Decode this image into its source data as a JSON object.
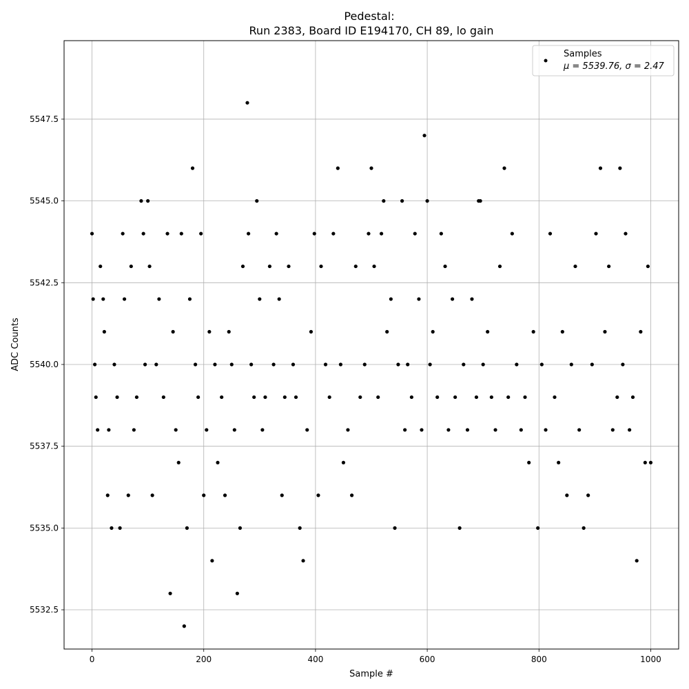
{
  "chart_data": {
    "type": "scatter",
    "title": "Pedestal:",
    "subtitle": "Run 2383, Board ID E194170, CH 89, lo gain",
    "xlabel": "Sample #",
    "ylabel": "ADC Counts",
    "xlim": [
      -50,
      1050
    ],
    "ylim": [
      5531.3,
      5549.9
    ],
    "xticks": [
      0,
      200,
      400,
      600,
      800,
      1000
    ],
    "yticks": [
      5532.5,
      5535.0,
      5537.5,
      5540.0,
      5542.5,
      5545.0,
      5547.5
    ],
    "xtick_labels": [
      "0",
      "200",
      "400",
      "600",
      "800",
      "1000"
    ],
    "ytick_labels": [
      "5532.5",
      "5535.0",
      "5537.5",
      "5540.0",
      "5542.5",
      "5545.0",
      "5547.5"
    ],
    "grid": true,
    "legend_position": "top-right",
    "legend": {
      "label": "Samples",
      "stats": "μ = 5539.76, σ = 2.47"
    },
    "series": [
      {
        "name": "Samples",
        "color": "#000000",
        "x": [
          0,
          2,
          5,
          7,
          10,
          15,
          20,
          22,
          28,
          30,
          35,
          40,
          45,
          50,
          55,
          58,
          65,
          70,
          75,
          80,
          88,
          92,
          95,
          100,
          103,
          108,
          115,
          120,
          128,
          135,
          140,
          145,
          150,
          155,
          160,
          165,
          170,
          175,
          180,
          185,
          190,
          195,
          200,
          205,
          210,
          215,
          220,
          225,
          232,
          238,
          245,
          250,
          255,
          260,
          265,
          270,
          278,
          280,
          285,
          290,
          295,
          300,
          305,
          310,
          318,
          325,
          330,
          335,
          340,
          345,
          352,
          360,
          365,
          372,
          378,
          385,
          392,
          398,
          405,
          410,
          418,
          425,
          432,
          440,
          445,
          450,
          458,
          465,
          472,
          480,
          488,
          495,
          500,
          505,
          512,
          518,
          522,
          528,
          535,
          542,
          548,
          555,
          560,
          565,
          572,
          578,
          585,
          590,
          595,
          600,
          605,
          610,
          618,
          625,
          632,
          638,
          645,
          650,
          658,
          665,
          672,
          680,
          688,
          692,
          695,
          700,
          708,
          715,
          722,
          730,
          738,
          745,
          752,
          760,
          768,
          775,
          782,
          790,
          798,
          805,
          812,
          820,
          828,
          835,
          842,
          850,
          858,
          865,
          872,
          880,
          888,
          895,
          902,
          910,
          918,
          925,
          932,
          940,
          945,
          950,
          955,
          962,
          968,
          975,
          982,
          990,
          995,
          1000
        ],
        "y": [
          5544,
          5542,
          5540,
          5539,
          5538,
          5543,
          5542,
          5541,
          5536,
          5538,
          5535,
          5540,
          5539,
          5535,
          5544,
          5542,
          5536,
          5543,
          5538,
          5539,
          5545,
          5544,
          5540,
          5545,
          5543,
          5536,
          5540,
          5542,
          5539,
          5544,
          5533,
          5541,
          5538,
          5537,
          5544,
          5532,
          5535,
          5542,
          5546,
          5540,
          5539,
          5544,
          5536,
          5538,
          5541,
          5534,
          5540,
          5537,
          5539,
          5536,
          5541,
          5540,
          5538,
          5533,
          5535,
          5543,
          5548,
          5544,
          5540,
          5539,
          5545,
          5542,
          5538,
          5539,
          5543,
          5540,
          5544,
          5542,
          5536,
          5539,
          5543,
          5540,
          5539,
          5535,
          5534,
          5538,
          5541,
          5544,
          5536,
          5543,
          5540,
          5539,
          5544,
          5546,
          5540,
          5537,
          5538,
          5536,
          5543,
          5539,
          5540,
          5544,
          5546,
          5543,
          5539,
          5544,
          5545,
          5541,
          5542,
          5535,
          5540,
          5545,
          5538,
          5540,
          5539,
          5544,
          5542,
          5538,
          5547,
          5545,
          5540,
          5541,
          5539,
          5544,
          5543,
          5538,
          5542,
          5539,
          5535,
          5540,
          5538,
          5542,
          5539,
          5545,
          5545,
          5540,
          5541,
          5539,
          5538,
          5543,
          5546,
          5539,
          5544,
          5540,
          5538,
          5539,
          5537,
          5541,
          5535,
          5540,
          5538,
          5544,
          5539,
          5537,
          5541,
          5536,
          5540,
          5543,
          5538,
          5535,
          5536,
          5540,
          5544,
          5546,
          5541,
          5543,
          5538,
          5539,
          5546,
          5540,
          5544,
          5538,
          5539,
          5534,
          5541,
          5537,
          5543,
          5537
        ]
      }
    ]
  }
}
